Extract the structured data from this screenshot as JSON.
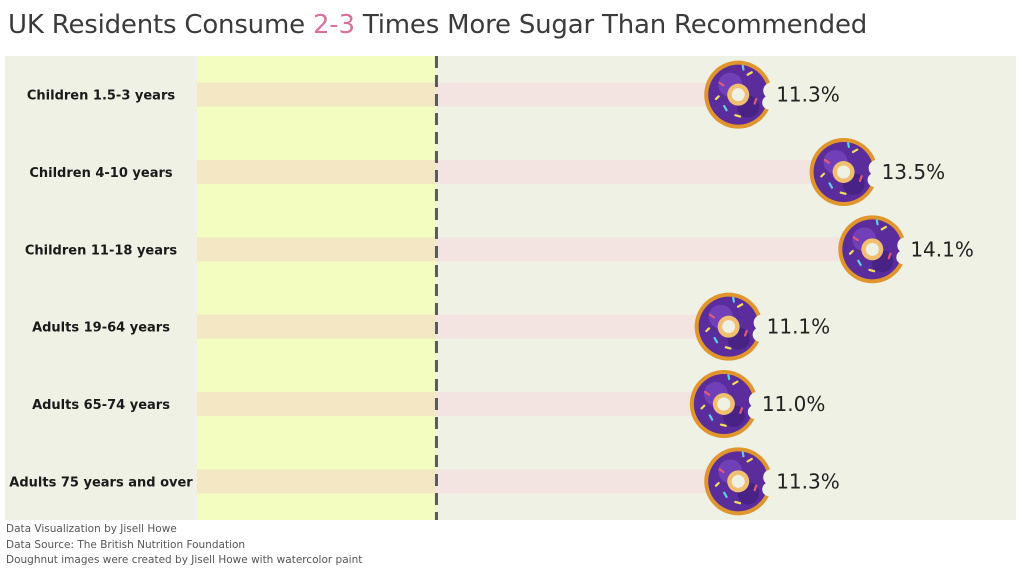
{
  "title": {
    "before": "UK Residents Consume ",
    "highlight": "2-3",
    "after": " Times More Sugar Than Recommended"
  },
  "colors": {
    "highlight": "#d8719e",
    "panel_background": "#eef1e4",
    "recommended_band": "#f2fdbf",
    "reference_line": "#5a5a5a",
    "bar_inside_band": "#f3e7c4",
    "bar_outside_band": "#f3e4e1",
    "icon": "doughnut-icon"
  },
  "chart_data": {
    "type": "bar",
    "orientation": "horizontal",
    "categories": [
      "Children 1.5-3 years",
      "Children 4-10 years",
      "Children 11-18 years",
      "Adults 19-64 years",
      "Adults 65-74 years",
      "Adults 75 years and over"
    ],
    "values": [
      11.3,
      13.5,
      14.1,
      11.1,
      11.0,
      11.3
    ],
    "value_labels": [
      "11.3%",
      "13.5%",
      "14.1%",
      "11.1%",
      "11.0%",
      "11.3%"
    ],
    "unit": "%",
    "xlim": [
      0,
      17.1
    ],
    "recommended_max": 5,
    "marker": "doughnut-icon",
    "grid": false,
    "legend": "none"
  },
  "footer": {
    "credit": "Data Visualization by Jisell Howe",
    "source": "Data Source: The British Nutrition Foundation",
    "image_note": "Doughnut images were created by Jisell Howe with watercolor paint"
  }
}
